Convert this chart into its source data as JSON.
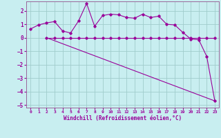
{
  "xlabel": "Windchill (Refroidissement éolien,°C)",
  "bg_color": "#c8eef0",
  "grid_color": "#a0cccc",
  "line_color": "#990099",
  "spine_color": "#996699",
  "xlim": [
    -0.5,
    23.5
  ],
  "ylim": [
    -5.2,
    2.7
  ],
  "yticks": [
    -5,
    -4,
    -3,
    -2,
    -1,
    0,
    1,
    2
  ],
  "xticks": [
    0,
    1,
    2,
    3,
    4,
    5,
    6,
    7,
    8,
    9,
    10,
    11,
    12,
    13,
    14,
    15,
    16,
    17,
    18,
    19,
    20,
    21,
    22,
    23
  ],
  "curve1_x": [
    0,
    1,
    2,
    3,
    4,
    5,
    6,
    7,
    8,
    9,
    10,
    11,
    12,
    13,
    14,
    15,
    16,
    17,
    18,
    19,
    20,
    21,
    22,
    23
  ],
  "curve1_y": [
    0.65,
    0.95,
    1.1,
    1.2,
    0.5,
    0.35,
    1.25,
    2.55,
    0.85,
    1.65,
    1.75,
    1.7,
    1.5,
    1.45,
    1.75,
    1.5,
    1.6,
    1.0,
    0.95,
    0.4,
    -0.1,
    -0.15,
    -1.4,
    -4.7
  ],
  "curve2_x": [
    2,
    3,
    4,
    5,
    6,
    7,
    8,
    9,
    10,
    11,
    12,
    13,
    14,
    15,
    16,
    17,
    18,
    19,
    20,
    21,
    22,
    23
  ],
  "curve2_y": [
    0.0,
    0.0,
    0.0,
    0.0,
    0.0,
    0.0,
    0.0,
    0.0,
    0.0,
    0.0,
    0.0,
    0.0,
    0.0,
    0.0,
    0.0,
    0.0,
    0.0,
    0.0,
    0.0,
    0.0,
    0.0,
    0.0
  ],
  "curve3_x": [
    2,
    23
  ],
  "curve3_y": [
    0.0,
    -4.7
  ]
}
